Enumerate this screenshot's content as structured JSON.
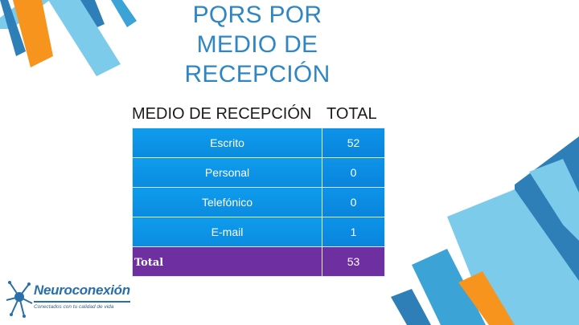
{
  "slide": {
    "title_lines": [
      "PQRS POR",
      "MEDIO DE",
      "RECEPCIÓN"
    ]
  },
  "table": {
    "header": {
      "medio": "MEDIO DE RECEPCIÓN",
      "total": "TOTAL"
    },
    "rows": [
      {
        "medio": "Escrito",
        "total": "52"
      },
      {
        "medio": "Personal",
        "total": "0"
      },
      {
        "medio": "Telefónico",
        "total": "0"
      },
      {
        "medio": "E-mail",
        "total": "1"
      }
    ],
    "total_row": {
      "label": "Total",
      "value": "53"
    }
  },
  "logo": {
    "name": "Neuroconexión",
    "tagline": "Conectados con tu calidad de vida"
  },
  "colors": {
    "title": "#2f86c4",
    "cell_blue": "#0f9cec",
    "total_purple": "#6e2fa0",
    "deco_orange": "#f7941d",
    "deco_light_blue": "#7ccbeb",
    "deco_mid_blue": "#3ba3d6",
    "deco_dark_blue": "#2e7fb8"
  }
}
